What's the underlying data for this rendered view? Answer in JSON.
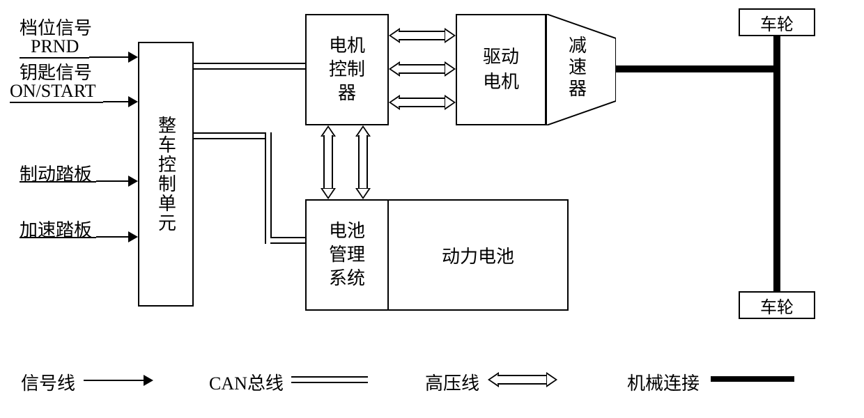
{
  "inputs": {
    "gear_signal": "档位信号",
    "prnd": "PRND",
    "key_signal": "钥匙信号",
    "on_start": "ON/START",
    "brake_pedal": "制动踏板",
    "accel_pedal": "加速踏板"
  },
  "blocks": {
    "vcu": "整车控制单元",
    "motor_ctrl": "电机控制器",
    "drive_motor": "驱动电机",
    "reducer": "减速器",
    "bms": "电池管理系统",
    "battery": "动力电池",
    "wheel": "车轮"
  },
  "legend": {
    "signal_line": "信号线",
    "can_bus": "CAN总线",
    "hv_line": "高压线",
    "mech_conn": "机械连接"
  },
  "colors": {
    "line": "#000000",
    "bg": "#ffffff"
  },
  "font_sizes": {
    "label": 26,
    "block": 26
  }
}
